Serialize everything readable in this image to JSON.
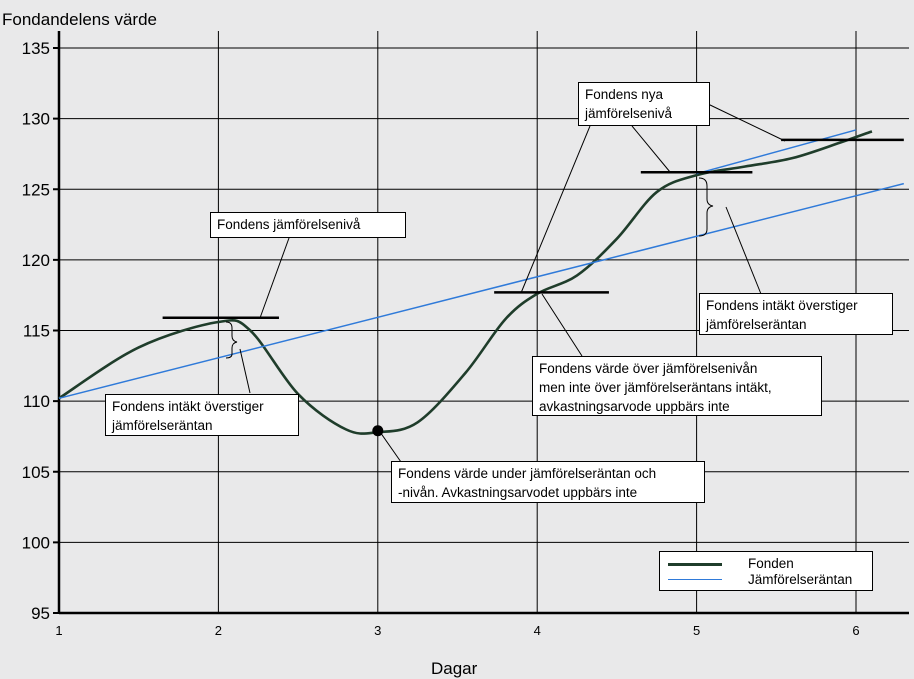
{
  "chart_data": {
    "type": "line",
    "ylabel": "Fondandelens värde",
    "xlabel": "Dagar",
    "xlim": [
      1,
      6.3
    ],
    "ylim": [
      95,
      136
    ],
    "x_ticks": [
      "1",
      "2",
      "3",
      "4",
      "5",
      "6"
    ],
    "y_ticks": [
      "95",
      "100",
      "105",
      "110",
      "115",
      "120",
      "125",
      "130",
      "135"
    ],
    "grid": true,
    "legend_position": "bottom-right",
    "series": [
      {
        "name": "Fonden",
        "color": "#1f3d2b",
        "points": [
          [
            1,
            110.2
          ],
          [
            1.5,
            113.8
          ],
          [
            2,
            115.6
          ],
          [
            2.2,
            115.0
          ],
          [
            2.5,
            110.5
          ],
          [
            2.8,
            108.0
          ],
          [
            3,
            107.8
          ],
          [
            3.25,
            108.5
          ],
          [
            3.55,
            112.0
          ],
          [
            3.8,
            115.8
          ],
          [
            4,
            117.6
          ],
          [
            4.25,
            118.9
          ],
          [
            4.5,
            121.5
          ],
          [
            4.75,
            124.8
          ],
          [
            5,
            126.0
          ],
          [
            5.3,
            126.6
          ],
          [
            5.6,
            127.2
          ],
          [
            5.9,
            128.3
          ],
          [
            6.1,
            129.1
          ]
        ]
      },
      {
        "name": "Jämförelseräntan",
        "color": "#2f7ad9",
        "points": [
          [
            1,
            110.2
          ],
          [
            6.3,
            125.4
          ]
        ]
      },
      {
        "name": "Fondens nya jämförelsenivå",
        "color": "#2f7ad9",
        "points": [
          [
            5,
            126.1
          ],
          [
            6,
            129.2
          ]
        ]
      }
    ],
    "benchmark_levels": [
      {
        "x_start": 1.65,
        "x_end": 2.38,
        "y": 115.9
      },
      {
        "x_start": 3.73,
        "x_end": 4.45,
        "y": 117.7
      },
      {
        "x_start": 4.65,
        "x_end": 5.35,
        "y": 126.2
      },
      {
        "x_start": 5.53,
        "x_end": 6.3,
        "y": 128.5
      }
    ],
    "marker": {
      "x": 3,
      "y": 107.9
    },
    "annotations": [
      {
        "id": "a1",
        "text": "Fondens jämförelsenivå"
      },
      {
        "id": "a2",
        "text": "Fondens intäkt överstiger\njämförelseräntan"
      },
      {
        "id": "a3",
        "text": "Fondens värde under jämförelseräntan och\n-nivån. Avkastningsarvodet uppbärs inte"
      },
      {
        "id": "a4",
        "text": "Fondens värde över jämförelsenivån\nmen  inte över jämförelseräntans intäkt,\navkastningsarvode uppbärs inte"
      },
      {
        "id": "a5",
        "text": "Fondens nya\njämförelsenivå"
      },
      {
        "id": "a6",
        "text": "Fondens intäkt överstiger\njämförelseräntan"
      }
    ]
  }
}
